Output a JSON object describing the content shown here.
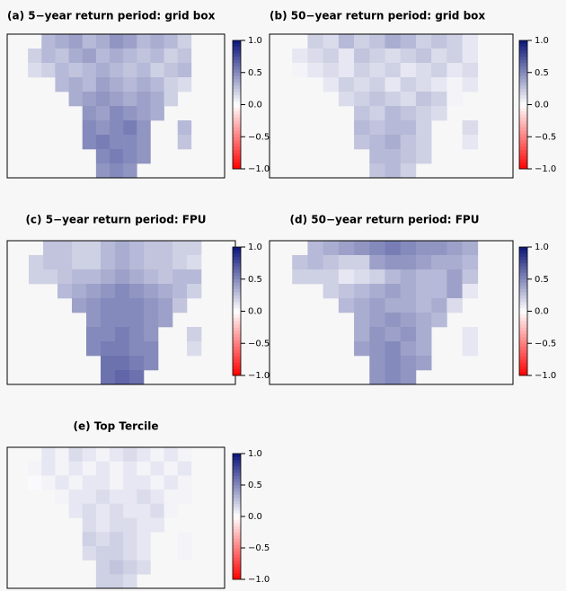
{
  "chart_data": [
    {
      "type": "heatmap",
      "title": "(a) 5−year return period: grid box",
      "zlim": [
        -1,
        1
      ],
      "zticks": [
        {
          "value": 1,
          "label": "1.0"
        },
        {
          "value": 0.5,
          "label": "0.5"
        },
        {
          "value": 0,
          "label": "0.0"
        },
        {
          "value": -0.5,
          "label": "−0.5"
        },
        {
          "value": -1,
          "label": "−1.0"
        }
      ],
      "values": [
        [
          null,
          null,
          0.3,
          0.35,
          0.4,
          0.3,
          0.35,
          0.45,
          0.4,
          0.3,
          0.35,
          0.3,
          0.2,
          null
        ],
        [
          null,
          0.2,
          0.3,
          0.25,
          0.35,
          0.4,
          0.3,
          0.35,
          0.3,
          0.25,
          0.3,
          0.2,
          0.25,
          null
        ],
        [
          null,
          0.15,
          0.2,
          0.3,
          0.25,
          0.3,
          0.35,
          0.3,
          0.25,
          0.3,
          0.2,
          0.25,
          0.3,
          null
        ],
        [
          null,
          null,
          null,
          0.3,
          0.35,
          0.3,
          0.4,
          0.35,
          0.3,
          0.35,
          0.3,
          0.2,
          0.15,
          null
        ],
        [
          null,
          null,
          null,
          null,
          0.35,
          0.4,
          0.45,
          0.4,
          0.35,
          0.4,
          0.35,
          0.2,
          null,
          null
        ],
        [
          null,
          null,
          null,
          null,
          null,
          0.45,
          0.4,
          0.5,
          0.45,
          0.4,
          0.35,
          null,
          null,
          null
        ],
        [
          null,
          null,
          null,
          null,
          null,
          0.5,
          0.45,
          0.5,
          0.55,
          0.45,
          null,
          null,
          0.3,
          null
        ],
        [
          null,
          null,
          null,
          null,
          null,
          0.5,
          0.55,
          0.5,
          0.5,
          0.45,
          null,
          null,
          0.25,
          null
        ],
        [
          null,
          null,
          null,
          null,
          null,
          null,
          0.5,
          0.55,
          0.5,
          0.45,
          null,
          null,
          null,
          null
        ],
        [
          null,
          null,
          null,
          null,
          null,
          null,
          0.45,
          0.5,
          0.45,
          null,
          null,
          null,
          null,
          null
        ]
      ]
    },
    {
      "type": "heatmap",
      "title": "(b) 50−year return period: grid box",
      "zlim": [
        -1,
        1
      ],
      "zticks": [
        {
          "value": 1,
          "label": "1.0"
        },
        {
          "value": 0.5,
          "label": "0.5"
        },
        {
          "value": 0,
          "label": "0.0"
        },
        {
          "value": -0.5,
          "label": "−0.5"
        },
        {
          "value": -1,
          "label": "−1.0"
        }
      ],
      "values": [
        [
          null,
          null,
          0.2,
          0.15,
          0.3,
          0.2,
          0.25,
          0.35,
          0.3,
          0.2,
          0.25,
          0.2,
          0.1,
          null
        ],
        [
          null,
          0.1,
          0.15,
          0.2,
          0.1,
          0.25,
          0.2,
          0.15,
          0.2,
          0.25,
          0.15,
          0.2,
          0.1,
          null
        ],
        [
          null,
          0.05,
          0.1,
          0.15,
          0.1,
          0.2,
          0.15,
          0.2,
          0.1,
          0.15,
          0.2,
          0.1,
          0.15,
          null
        ],
        [
          null,
          null,
          null,
          0.1,
          0.2,
          0.15,
          0.2,
          0.1,
          0.2,
          0.15,
          0.1,
          0.05,
          0.1,
          null
        ],
        [
          null,
          null,
          null,
          null,
          0.15,
          0.2,
          0.25,
          0.2,
          0.15,
          0.25,
          0.2,
          0.05,
          null,
          null
        ],
        [
          null,
          null,
          null,
          null,
          null,
          0.25,
          0.2,
          0.3,
          0.25,
          0.2,
          0.15,
          null,
          null,
          null
        ],
        [
          null,
          null,
          null,
          null,
          null,
          0.3,
          0.25,
          0.3,
          0.3,
          0.2,
          null,
          null,
          0.15,
          null
        ],
        [
          null,
          null,
          null,
          null,
          null,
          0.25,
          0.3,
          0.35,
          0.25,
          0.2,
          null,
          null,
          0.1,
          null
        ],
        [
          null,
          null,
          null,
          null,
          null,
          null,
          0.3,
          0.3,
          0.25,
          0.2,
          null,
          null,
          null,
          null
        ],
        [
          null,
          null,
          null,
          null,
          null,
          null,
          0.25,
          0.3,
          0.2,
          null,
          null,
          null,
          null,
          null
        ]
      ]
    },
    {
      "type": "heatmap",
      "title": "(c) 5−year return period: FPU",
      "zlim": [
        -1,
        1
      ],
      "zticks": [
        {
          "value": 1,
          "label": "1.0"
        },
        {
          "value": 0.5,
          "label": "0.5"
        },
        {
          "value": 0,
          "label": "0.0"
        },
        {
          "value": -0.5,
          "label": "−0.5"
        },
        {
          "value": -1,
          "label": "−1.0"
        }
      ],
      "values": [
        [
          null,
          null,
          0.25,
          0.25,
          0.2,
          0.2,
          0.3,
          0.35,
          0.3,
          0.25,
          0.25,
          0.2,
          0.2,
          null
        ],
        [
          null,
          0.2,
          0.25,
          0.25,
          0.2,
          0.2,
          0.3,
          0.35,
          0.3,
          0.25,
          0.25,
          0.2,
          0.15,
          null
        ],
        [
          null,
          0.2,
          0.2,
          0.25,
          0.3,
          0.3,
          0.35,
          0.4,
          0.35,
          0.3,
          0.25,
          0.3,
          0.3,
          null
        ],
        [
          null,
          null,
          null,
          0.3,
          0.35,
          0.4,
          0.45,
          0.5,
          0.45,
          0.4,
          0.35,
          0.3,
          0.2,
          null
        ],
        [
          null,
          null,
          null,
          null,
          0.4,
          0.45,
          0.5,
          0.5,
          0.5,
          0.45,
          0.4,
          0.25,
          null,
          null
        ],
        [
          null,
          null,
          null,
          null,
          null,
          0.45,
          0.5,
          0.5,
          0.5,
          0.45,
          0.4,
          null,
          null,
          null
        ],
        [
          null,
          null,
          null,
          null,
          null,
          0.5,
          0.5,
          0.55,
          0.5,
          0.45,
          null,
          null,
          0.2,
          null
        ],
        [
          null,
          null,
          null,
          null,
          null,
          0.5,
          0.55,
          0.55,
          0.5,
          0.5,
          null,
          null,
          0.15,
          null
        ],
        [
          null,
          null,
          null,
          null,
          null,
          null,
          0.6,
          0.6,
          0.55,
          0.5,
          null,
          null,
          null,
          null
        ],
        [
          null,
          null,
          null,
          null,
          null,
          null,
          0.6,
          0.65,
          0.6,
          null,
          null,
          null,
          null,
          null
        ]
      ]
    },
    {
      "type": "heatmap",
      "title": "(d) 50−year return period: FPU",
      "zlim": [
        -1,
        1
      ],
      "zticks": [
        {
          "value": 1,
          "label": "1.0"
        },
        {
          "value": 0.5,
          "label": "0.5"
        },
        {
          "value": 0,
          "label": "0.0"
        },
        {
          "value": -0.5,
          "label": "−0.5"
        },
        {
          "value": -1,
          "label": "−1.0"
        }
      ],
      "values": [
        [
          null,
          null,
          0.3,
          0.35,
          0.4,
          0.45,
          0.5,
          0.55,
          0.5,
          0.45,
          0.45,
          0.4,
          0.35,
          null
        ],
        [
          null,
          0.25,
          0.3,
          0.25,
          0.2,
          0.2,
          0.4,
          0.45,
          0.45,
          0.4,
          0.35,
          0.35,
          0.3,
          null
        ],
        [
          null,
          0.2,
          0.2,
          0.2,
          0.1,
          0.15,
          0.2,
          0.3,
          0.35,
          0.3,
          0.3,
          0.4,
          0.25,
          null
        ],
        [
          null,
          null,
          null,
          0.2,
          0.25,
          0.3,
          0.35,
          0.4,
          0.35,
          0.3,
          0.3,
          0.4,
          0.1,
          null
        ],
        [
          null,
          null,
          null,
          null,
          0.3,
          0.35,
          0.4,
          0.35,
          0.35,
          0.3,
          0.35,
          0.15,
          null,
          null
        ],
        [
          null,
          null,
          null,
          null,
          null,
          0.35,
          0.4,
          0.45,
          0.4,
          0.35,
          0.3,
          null,
          null,
          null
        ],
        [
          null,
          null,
          null,
          null,
          null,
          0.35,
          0.45,
          0.4,
          0.45,
          0.35,
          null,
          null,
          0.1,
          null
        ],
        [
          null,
          null,
          null,
          null,
          null,
          0.4,
          0.45,
          0.5,
          0.4,
          0.35,
          null,
          null,
          0.1,
          null
        ],
        [
          null,
          null,
          null,
          null,
          null,
          null,
          0.45,
          0.5,
          0.45,
          0.4,
          null,
          null,
          null,
          null
        ],
        [
          null,
          null,
          null,
          null,
          null,
          null,
          0.45,
          0.5,
          0.45,
          null,
          null,
          null,
          null,
          null
        ]
      ]
    },
    {
      "type": "heatmap",
      "title": "(e) Top Tercile",
      "zlim": [
        -1,
        1
      ],
      "zticks": [
        {
          "value": 1,
          "label": "1.0"
        },
        {
          "value": 0.5,
          "label": "0.5"
        },
        {
          "value": 0,
          "label": "0.0"
        },
        {
          "value": -0.5,
          "label": "−0.5"
        },
        {
          "value": -1,
          "label": "−1.0"
        }
      ],
      "values": [
        [
          null,
          null,
          0.1,
          0.05,
          0.15,
          0.1,
          0.05,
          0.1,
          0.15,
          0.1,
          0.05,
          0.1,
          0.05,
          null
        ],
        [
          null,
          0.05,
          0.1,
          0.05,
          0.1,
          0.05,
          0.1,
          0.05,
          0.1,
          0.05,
          0.1,
          0.05,
          0.1,
          null
        ],
        [
          null,
          0.02,
          0.05,
          0.1,
          0.05,
          0.1,
          0.1,
          0.05,
          0.1,
          0.1,
          0.05,
          0.1,
          0.05,
          null
        ],
        [
          null,
          null,
          null,
          0.05,
          0.1,
          0.1,
          0.15,
          0.1,
          0.1,
          0.15,
          0.1,
          0.05,
          0.05,
          null
        ],
        [
          null,
          null,
          null,
          null,
          0.1,
          0.15,
          0.1,
          0.15,
          0.1,
          0.1,
          0.15,
          0.05,
          null,
          null
        ],
        [
          null,
          null,
          null,
          null,
          null,
          0.15,
          0.1,
          0.15,
          0.15,
          0.1,
          0.1,
          null,
          null,
          null
        ],
        [
          null,
          null,
          null,
          null,
          null,
          0.2,
          0.15,
          0.2,
          0.15,
          0.1,
          null,
          null,
          0.05,
          null
        ],
        [
          null,
          null,
          null,
          null,
          null,
          0.15,
          0.2,
          0.2,
          0.15,
          0.1,
          null,
          null,
          0.05,
          null
        ],
        [
          null,
          null,
          null,
          null,
          null,
          null,
          0.2,
          0.25,
          0.2,
          0.15,
          null,
          null,
          null,
          null
        ],
        [
          null,
          null,
          null,
          null,
          null,
          null,
          0.2,
          0.2,
          0.15,
          null,
          null,
          null,
          null,
          null
        ]
      ]
    }
  ]
}
